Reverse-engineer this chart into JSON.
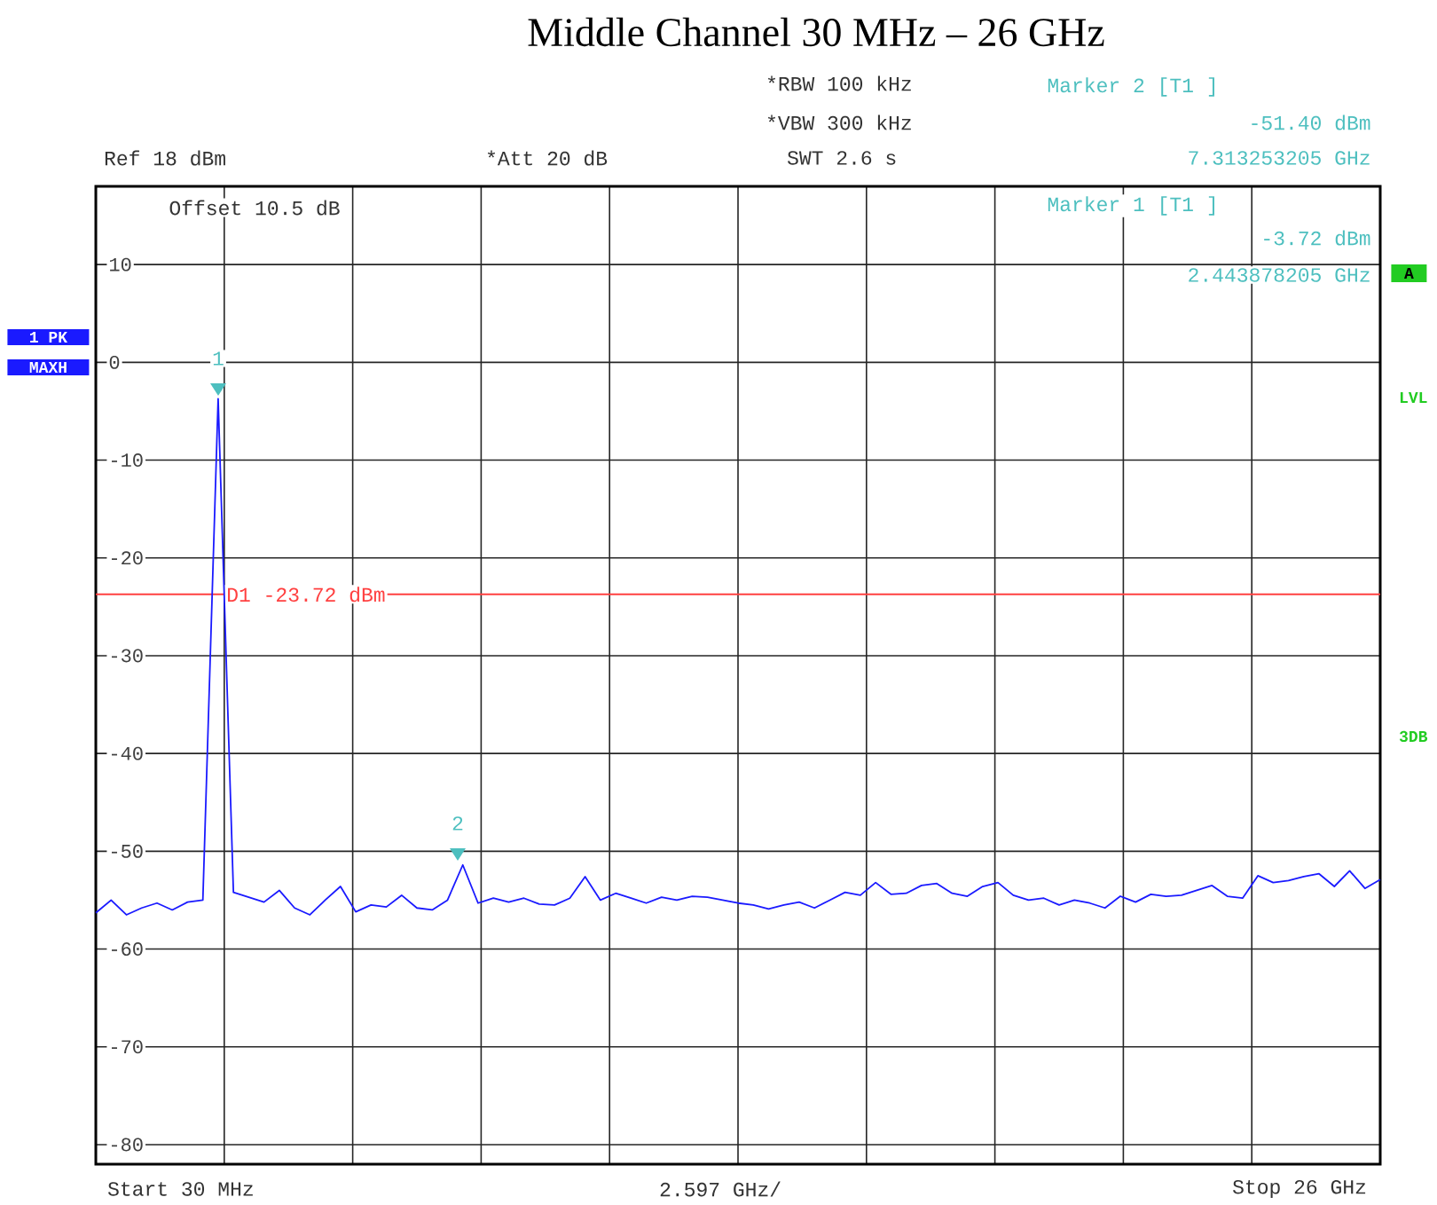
{
  "chart_data": {
    "type": "line",
    "title": "Middle Channel 30 MHz – 26 GHz",
    "categories": [
      null,
      null,
      null,
      null,
      null,
      null,
      null,
      null,
      null,
      null,
      null,
      null,
      null,
      null,
      null,
      null,
      null,
      null,
      null,
      null,
      null,
      null,
      null,
      null,
      null,
      null,
      null,
      null,
      null,
      null,
      null,
      null,
      null,
      null,
      null,
      null,
      null,
      null,
      null,
      null,
      null,
      null,
      null,
      null,
      null,
      null,
      null,
      null,
      null,
      null,
      null,
      null,
      null,
      null,
      null,
      null,
      null,
      null,
      null,
      null,
      null,
      null,
      null,
      null,
      null,
      null,
      null,
      null,
      null,
      null,
      null,
      null,
      null,
      null,
      null,
      null,
      null,
      null,
      null,
      null,
      null,
      null,
      null,
      null,
      null
    ],
    "ylim": [
      -82,
      18
    ],
    "yticks": [
      10,
      0,
      -10,
      -20,
      -30,
      -40,
      -50,
      -60,
      -70,
      -80
    ],
    "tick_labels": "y",
    "grid": true,
    "series": [
      {
        "color": "#1a1aff",
        "values": [
          -56.3,
          -55.0,
          -56.5,
          -55.8,
          -55.3,
          -56.0,
          -55.2,
          -55.0,
          -3.72,
          -54.2,
          -54.7,
          -55.2,
          -54.0,
          -55.8,
          -56.5,
          -55.0,
          -53.6,
          -56.2,
          -55.5,
          -55.7,
          -54.5,
          -55.8,
          -56.0,
          -55.0,
          -51.4,
          -55.3,
          -54.8,
          -55.2,
          -54.8,
          -55.4,
          -55.5,
          -54.8,
          -52.6,
          -55.0,
          -54.3,
          -54.8,
          -55.3,
          -54.7,
          -55.0,
          -54.6,
          -54.7,
          -55.0,
          -55.3,
          -55.5,
          -55.9,
          -55.5,
          -55.2,
          -55.8,
          -55.0,
          -54.2,
          -54.5,
          -53.2,
          -54.4,
          -54.3,
          -53.5,
          -53.3,
          -54.3,
          -54.6,
          -53.6,
          -53.2,
          -54.5,
          -55.0,
          -54.8,
          -55.5,
          -55.0,
          -55.3,
          -55.8,
          -54.6,
          -55.2,
          -54.4,
          -54.6,
          -54.5,
          -54.0,
          -53.5,
          -54.6,
          -54.8,
          -52.5,
          -53.2,
          -53.0,
          -52.6,
          -52.3,
          -53.6,
          -52.0,
          -53.8,
          -52.9
        ]
      }
    ],
    "ref_lines": [
      {
        "axis": "y",
        "value": -23.72,
        "label": "D1 -23.72 dBm",
        "color": "#ff4040"
      }
    ],
    "annotations": [
      "*RBW 100 kHz",
      "*VBW 300 kHz",
      "SWT 2.6 s",
      "Ref 18 dBm",
      "*Att 20 dB",
      "Marker 2 [T1 ]",
      "-51.40 dBm",
      "7.313253205 GHz",
      "Offset 10.5 dB",
      "Marker 1 [T1 ]",
      "-3.72 dBm",
      "2.443878205 GHz",
      "1 PK",
      "MAXH",
      "A",
      "LVL",
      "3DB",
      "Start 30 MHz",
      "2.597 GHz/",
      "Stop 26 GHz",
      "1",
      "2"
    ]
  }
}
